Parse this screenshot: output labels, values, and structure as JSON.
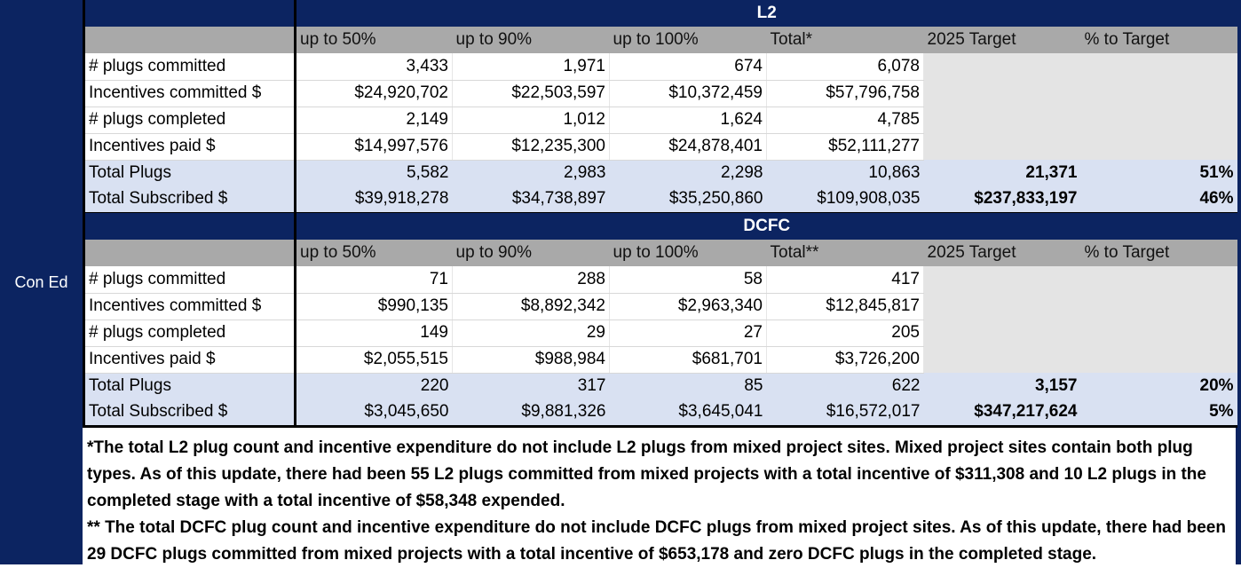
{
  "sidebar": {
    "label": "Con Ed"
  },
  "colors": {
    "navy": "#0c2461",
    "header_grey": "#a9a9a9",
    "target_grey": "#e4e4e4",
    "total_blue": "#d9e1f2"
  },
  "l2": {
    "title": "L2",
    "headers": [
      "up to 50%",
      "up to 90%",
      "up to 100%",
      "Total*",
      "2025 Target",
      "% to Target"
    ],
    "rows": [
      {
        "label": "# plugs committed",
        "values": [
          "3,433",
          "1,971",
          "674",
          "6,078"
        ]
      },
      {
        "label": "Incentives committed $",
        "values": [
          "$24,920,702",
          "$22,503,597",
          "$10,372,459",
          "$57,796,758"
        ]
      },
      {
        "label": "# plugs completed",
        "values": [
          "2,149",
          "1,012",
          "1,624",
          "4,785"
        ]
      },
      {
        "label": "Incentives paid $",
        "values": [
          "$14,997,576",
          "$12,235,300",
          "$24,878,401",
          "$52,111,277"
        ]
      }
    ],
    "totals": [
      {
        "label": "Total Plugs",
        "values": [
          "5,582",
          "2,983",
          "2,298",
          "10,863"
        ],
        "target": "21,371",
        "pct": "51%"
      },
      {
        "label": "Total Subscribed $",
        "values": [
          "$39,918,278",
          "$34,738,897",
          "$35,250,860",
          "$109,908,035"
        ],
        "target": "$237,833,197",
        "pct": "46%"
      }
    ]
  },
  "dcfc": {
    "title": "DCFC",
    "headers": [
      "up to 50%",
      "up to 90%",
      "up to 100%",
      "Total**",
      "2025 Target",
      "% to Target"
    ],
    "rows": [
      {
        "label": "# plugs committed",
        "values": [
          "71",
          "288",
          "58",
          "417"
        ]
      },
      {
        "label": "Incentives committed $",
        "values": [
          "$990,135",
          "$8,892,342",
          "$2,963,340",
          "$12,845,817"
        ]
      },
      {
        "label": "# plugs completed",
        "values": [
          "149",
          "29",
          "27",
          "205"
        ]
      },
      {
        "label": "Incentives paid $",
        "values": [
          "$2,055,515",
          "$988,984",
          "$681,701",
          "$3,726,200"
        ]
      }
    ],
    "totals": [
      {
        "label": "Total Plugs",
        "values": [
          "220",
          "317",
          "85",
          "622"
        ],
        "target": "3,157",
        "pct": "20%"
      },
      {
        "label": "Total Subscribed $",
        "values": [
          "$3,045,650",
          "$9,881,326",
          "$3,645,041",
          "$16,572,017"
        ],
        "target": "$347,217,624",
        "pct": "5%"
      }
    ]
  },
  "notes": {
    "l2": "*The total L2 plug count and incentive expenditure do not include L2 plugs from mixed project sites. Mixed project sites contain both plug types. As of this update, there had been 55 L2 plugs committed from mixed projects with a total incentive of $311,308 and 10 L2 plugs in the completed stage with a total incentive of $58,348 expended.",
    "dcfc": "** The total DCFC plug count and incentive expenditure do not include DCFC plugs from mixed project sites. As of this update, there had been 29 DCFC plugs committed from mixed projects with a total incentive of $653,178 and zero DCFC plugs in the completed stage."
  }
}
